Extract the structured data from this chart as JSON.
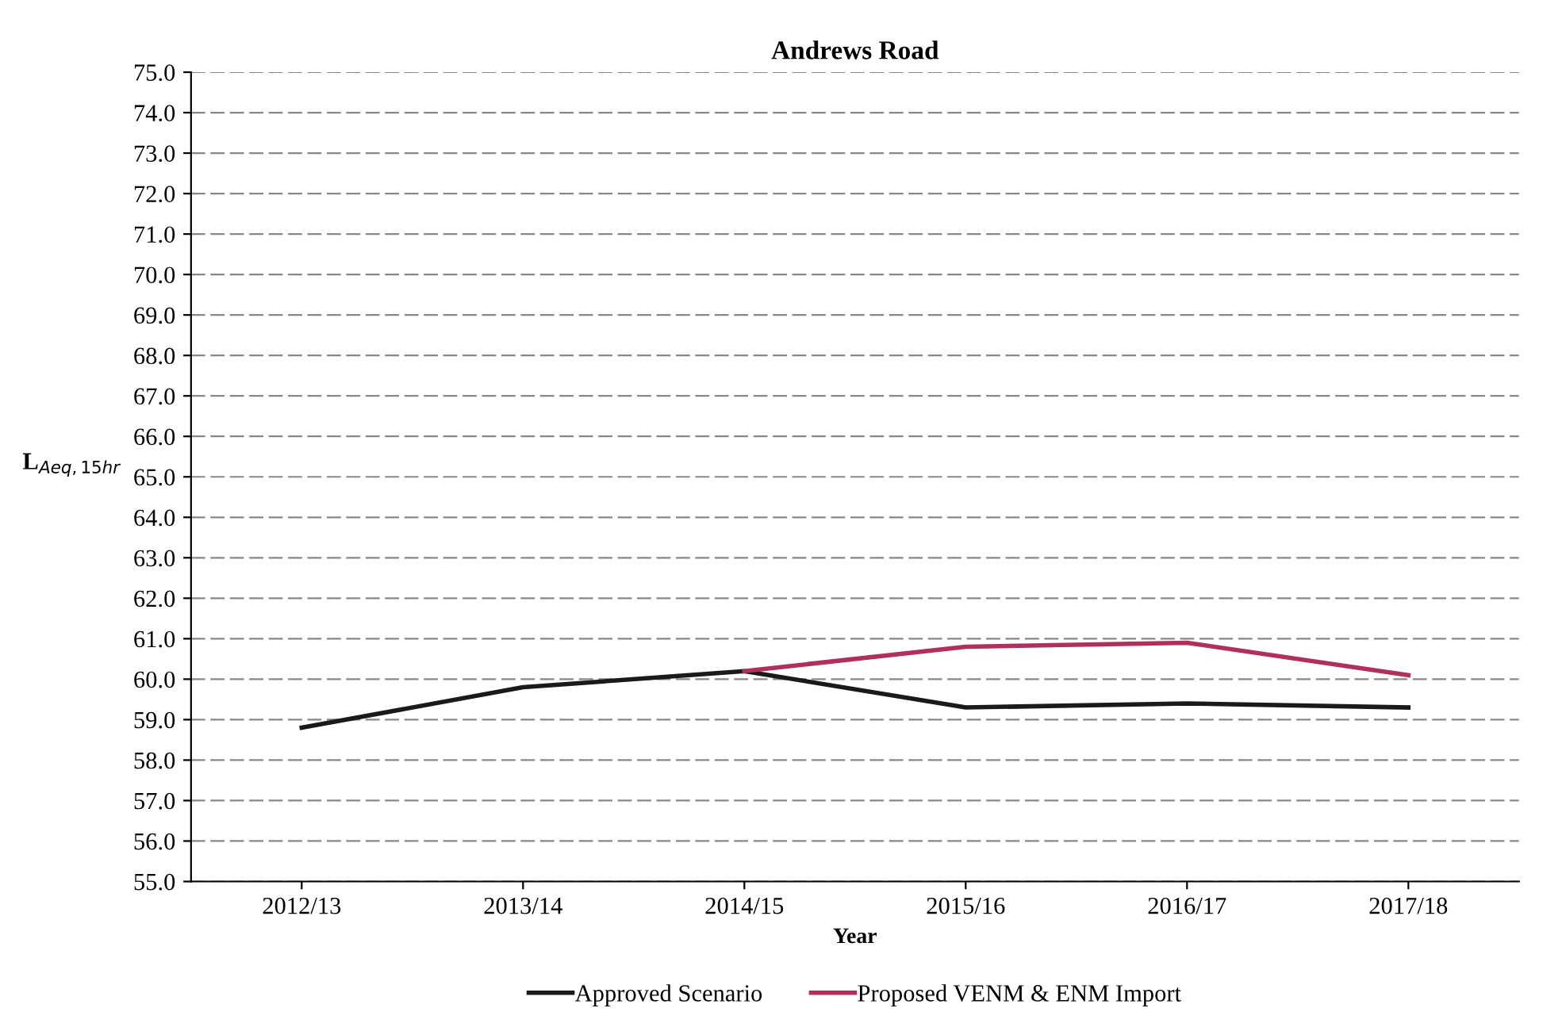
{
  "chart_data": {
    "type": "line",
    "title": "Andrews Road",
    "xlabel": "Year",
    "ylabel": "L$_{Aeq,15hr}$",
    "categories": [
      "2012/13",
      "2013/14",
      "2014/15",
      "2015/16",
      "2016/17",
      "2017/18"
    ],
    "series": [
      {
        "name": "Approved Scenario",
        "color": "#1a1a1a",
        "values": [
          58.8,
          59.8,
          60.2,
          59.3,
          59.4,
          59.3
        ]
      },
      {
        "name": "Proposed VENM & ENM Import",
        "color": "#b0305a",
        "values": [
          null,
          null,
          60.2,
          60.8,
          60.9,
          60.1
        ]
      }
    ],
    "ylim": [
      55.0,
      75.0
    ],
    "yticks": [
      {
        "value": 55,
        "label": "55.0"
      },
      {
        "value": 56,
        "label": "56.0"
      },
      {
        "value": 57,
        "label": "57.0"
      },
      {
        "value": 58,
        "label": "58.0"
      },
      {
        "value": 59,
        "label": "59.0"
      },
      {
        "value": 60,
        "label": "60.0"
      },
      {
        "value": 61,
        "label": "61.0"
      },
      {
        "value": 62,
        "label": "62.0"
      },
      {
        "value": 63,
        "label": "63.0"
      },
      {
        "value": 64,
        "label": "64.0"
      },
      {
        "value": 65,
        "label": "65.0"
      },
      {
        "value": 66,
        "label": "66.0"
      },
      {
        "value": 67,
        "label": "67.0"
      },
      {
        "value": 68,
        "label": "68.0"
      },
      {
        "value": 69,
        "label": "69.0"
      },
      {
        "value": 70,
        "label": "70.0"
      },
      {
        "value": 71,
        "label": "71.0"
      },
      {
        "value": 72,
        "label": "72.0"
      },
      {
        "value": 73,
        "label": "73.0"
      },
      {
        "value": 74,
        "label": "74.0"
      },
      {
        "value": 75,
        "label": "75.0"
      }
    ],
    "grid": "y",
    "legend": "bottom",
    "marker": "none",
    "line_style": "solid"
  }
}
